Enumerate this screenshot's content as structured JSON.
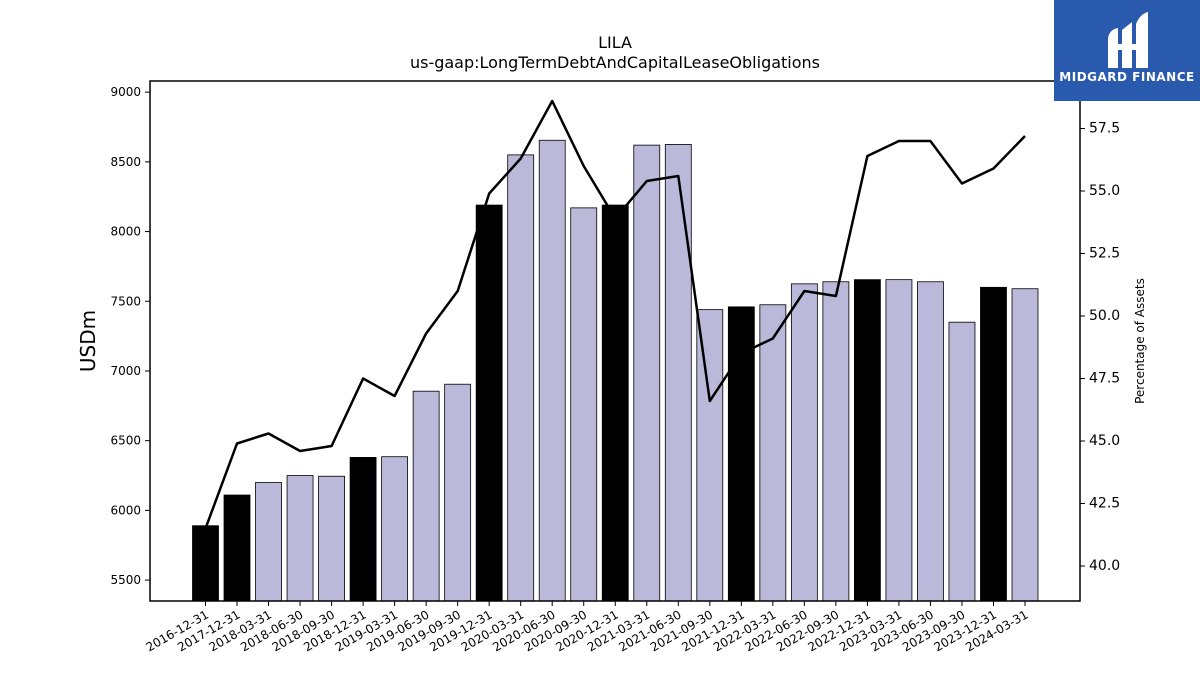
{
  "logo": {
    "text": "MIDGARD FINANCE",
    "background": "#2a5aad"
  },
  "chart_data": {
    "type": "bar",
    "title": "LILA",
    "subtitle": "us-gaap:LongTermDebtAndCapitalLeaseObligations",
    "ylabel": "USDm",
    "y2label": "Percentage of Assets",
    "ylim": [
      5350,
      9080
    ],
    "y2lim": [
      38.6,
      59.4
    ],
    "yticks": [
      5500,
      6000,
      6500,
      7000,
      7500,
      8000,
      8500,
      9000
    ],
    "y2ticks": [
      40.0,
      42.5,
      45.0,
      47.5,
      50.0,
      52.5,
      55.0,
      57.5
    ],
    "categories": [
      "2016-12-31",
      "2017-12-31",
      "2018-03-31",
      "2018-06-30",
      "2018-09-30",
      "2018-12-31",
      "2019-03-31",
      "2019-06-30",
      "2019-09-30",
      "2019-12-31",
      "2020-03-31",
      "2020-06-30",
      "2020-09-30",
      "2020-12-31",
      "2021-03-31",
      "2021-06-30",
      "2021-09-30",
      "2021-12-31",
      "2022-03-31",
      "2022-06-30",
      "2022-09-30",
      "2022-12-31",
      "2023-03-31",
      "2023-06-30",
      "2023-09-30",
      "2023-12-31",
      "2024-03-31"
    ],
    "series": [
      {
        "type": "bar",
        "axis": "left",
        "values": [
          5890,
          6110,
          6200,
          6250,
          6245,
          6380,
          6385,
          6855,
          6905,
          8190,
          8550,
          8655,
          8170,
          8190,
          8620,
          8625,
          7440,
          7460,
          7475,
          7625,
          7640,
          7655,
          7655,
          7640,
          7350,
          7600,
          7590
        ],
        "annual_flags": [
          true,
          true,
          false,
          false,
          false,
          true,
          false,
          false,
          false,
          true,
          false,
          false,
          false,
          true,
          false,
          false,
          false,
          true,
          false,
          false,
          false,
          true,
          false,
          false,
          false,
          true,
          false
        ]
      },
      {
        "type": "line",
        "axis": "right",
        "values": [
          41.5,
          44.9,
          45.3,
          44.6,
          44.8,
          47.5,
          46.8,
          49.3,
          51.0,
          54.9,
          56.3,
          58.6,
          56.0,
          53.9,
          55.4,
          55.6,
          46.6,
          48.5,
          49.1,
          51.0,
          50.8,
          56.4,
          57.0,
          57.0,
          55.3,
          55.9,
          57.2
        ]
      }
    ],
    "colors": {
      "bar_annual": "#000000",
      "bar_quarter": "#bcb8da",
      "line": "#000000"
    }
  }
}
